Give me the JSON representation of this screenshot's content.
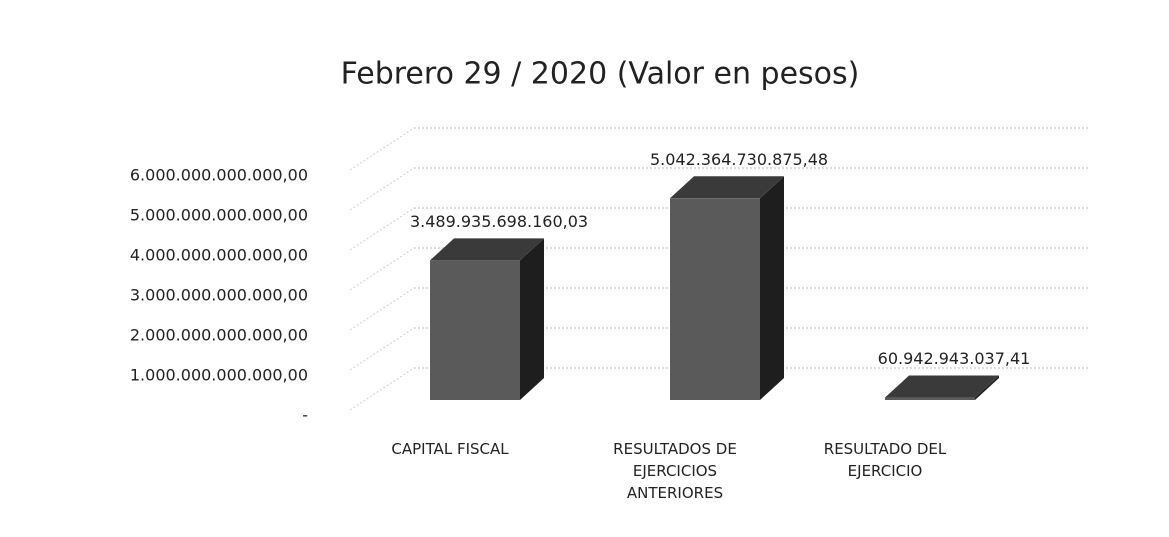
{
  "chart_data": {
    "type": "bar3d",
    "title": "Febrero 29 / 2020 (Valor en pesos)",
    "categories": [
      "CAPITAL FISCAL",
      "RESULTADOS DE EJERCICIOS ANTERIORES",
      "RESULTADO DEL EJERCICIO"
    ],
    "values": [
      3489935698160.03,
      5042364730875.48,
      60942943037.41
    ],
    "value_labels": [
      "3.489.935.698.160,03",
      "5.042.364.730.875,48",
      "60.942.943.037,41"
    ],
    "color": "#5a5a5a",
    "ylim": [
      0,
      6000000000000
    ],
    "yticks": [
      {
        "value": 0,
        "label": "-"
      },
      {
        "value": 1000000000000,
        "label": "1.000.000.000.000,00"
      },
      {
        "value": 2000000000000,
        "label": "2.000.000.000.000,00"
      },
      {
        "value": 3000000000000,
        "label": "3.000.000.000.000,00"
      },
      {
        "value": 4000000000000,
        "label": "4.000.000.000.000,00"
      },
      {
        "value": 5000000000000,
        "label": "5.000.000.000.000,00"
      },
      {
        "value": 6000000000000,
        "label": "6.000.000.000.000,00"
      }
    ],
    "grid": true
  }
}
